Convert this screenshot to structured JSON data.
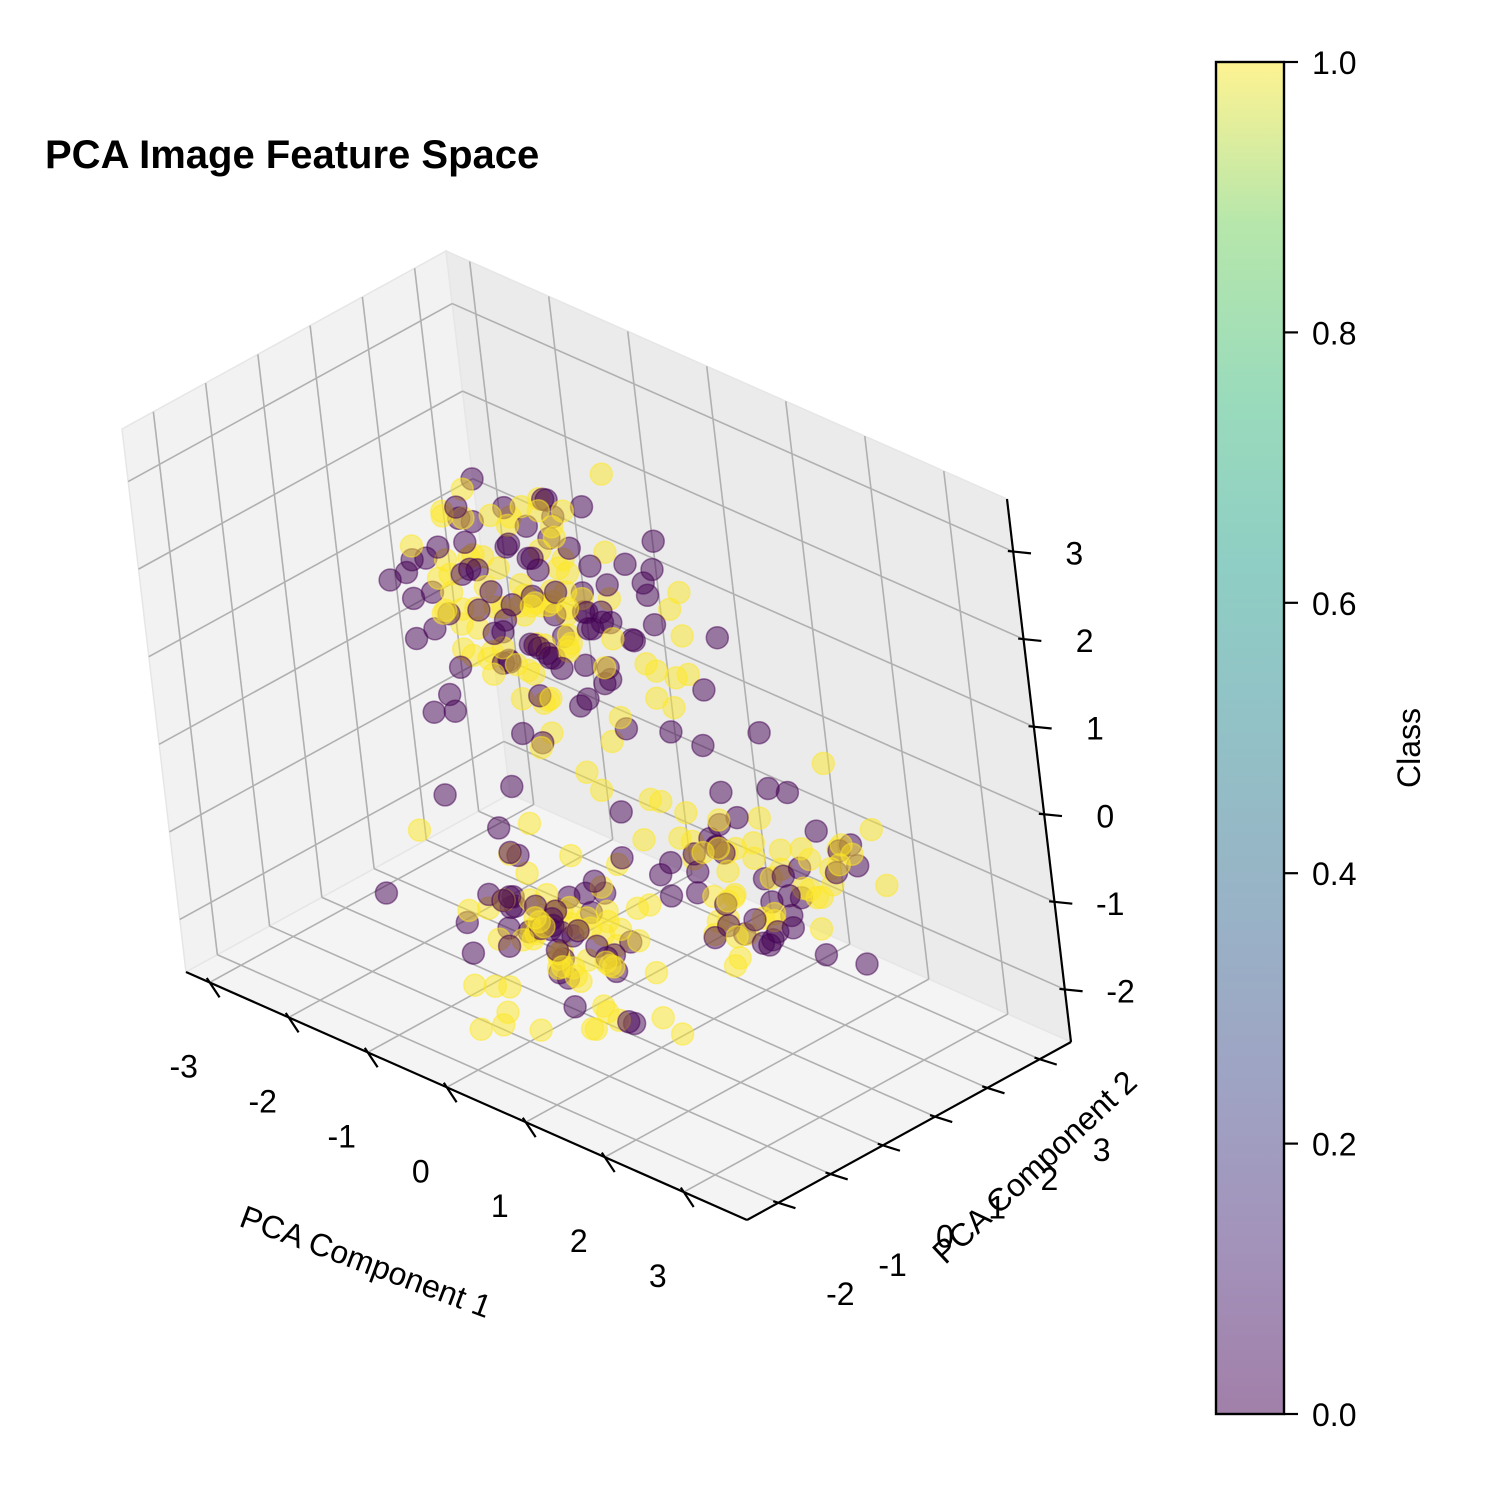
{
  "chart_data": {
    "type": "scatter",
    "title": "PCA Image Feature Space",
    "xlabel": "PCA Component 1",
    "ylabel": "PCA Component 2",
    "zlabel": "",
    "xlim": [
      -3.3,
      3.8
    ],
    "ylim": [
      -2.6,
      3.6
    ],
    "zlim": [
      -2.6,
      3.6
    ],
    "x_ticks": [
      "-3",
      "-2",
      "-1",
      "0",
      "1",
      "2",
      "3"
    ],
    "y_ticks": [
      "-2",
      "-1",
      "0",
      "1",
      "2",
      "3"
    ],
    "z_ticks": [
      "-2",
      "-1",
      "0",
      "1",
      "2",
      "3"
    ],
    "grid": true,
    "colormap": "viridis",
    "colors": {
      "class0": "#440154",
      "class1": "#fde725"
    },
    "alpha": 0.5,
    "colorbar": {
      "label": "Class",
      "ticks": [
        "0.0",
        "0.2",
        "0.4",
        "0.6",
        "0.8",
        "1.0"
      ],
      "range": [
        0,
        1
      ]
    },
    "clusters": [
      {
        "center": [
          -1.8,
          2.4,
          0.5
        ],
        "spread": [
          0.9,
          0.55,
          0.6
        ],
        "count": 190
      },
      {
        "center": [
          1.8,
          0.8,
          -0.6
        ],
        "spread": [
          0.75,
          0.6,
          0.45
        ],
        "count": 95
      },
      {
        "center": [
          0.8,
          -1.5,
          -0.9
        ],
        "spread": [
          0.8,
          0.45,
          0.5
        ],
        "count": 105
      }
    ]
  }
}
